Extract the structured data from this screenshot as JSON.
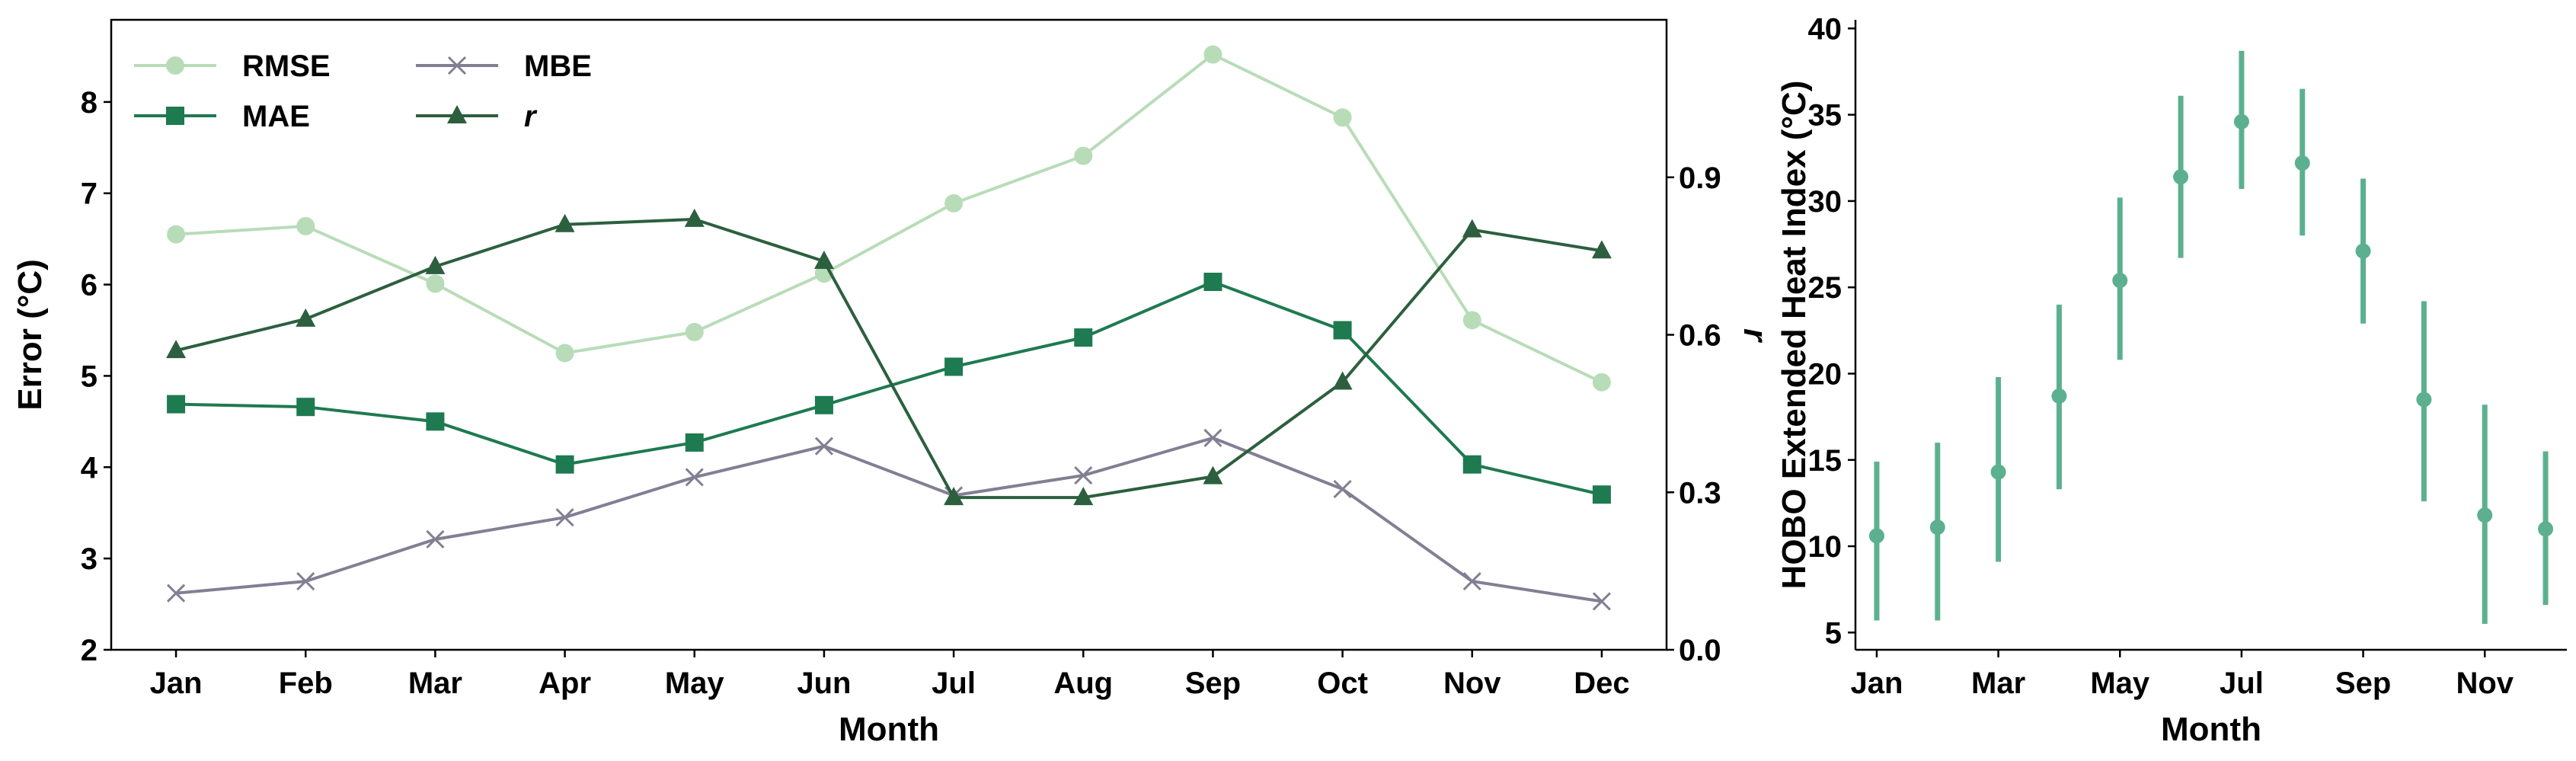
{
  "chart_data": [
    {
      "type": "line",
      "xlabel": "Month",
      "ylabel": "Error (°C)",
      "y2label": "r",
      "categories": [
        "Jan",
        "Feb",
        "Mar",
        "Apr",
        "May",
        "Jun",
        "Jul",
        "Aug",
        "Sep",
        "Oct",
        "Nov",
        "Dec"
      ],
      "ylim": [
        2,
        8.9
      ],
      "yticks": [
        2,
        3,
        4,
        5,
        6,
        7,
        8
      ],
      "y2lim": [
        0,
        1.2
      ],
      "y2ticks": [
        "0.0",
        "0.3",
        "0.6",
        "0.9"
      ],
      "grid": false,
      "legend": "upper-left",
      "series": [
        {
          "name": "RMSE",
          "axis": "left",
          "marker": "circle",
          "color": "#b8dcb8",
          "values": [
            6.55,
            6.64,
            6.01,
            5.25,
            5.48,
            6.12,
            6.89,
            7.41,
            8.52,
            7.83,
            5.61,
            4.93
          ]
        },
        {
          "name": "MAE",
          "axis": "left",
          "marker": "square",
          "color": "#1e7a50",
          "values": [
            4.69,
            4.66,
            4.5,
            4.03,
            4.27,
            4.68,
            5.1,
            5.42,
            6.03,
            5.5,
            4.03,
            3.7
          ]
        },
        {
          "name": "MBE",
          "axis": "left",
          "marker": "x",
          "color": "#827f93",
          "values": [
            2.62,
            2.75,
            3.21,
            3.45,
            3.89,
            4.23,
            3.69,
            3.91,
            4.32,
            3.76,
            2.75,
            2.53
          ]
        },
        {
          "name": "r",
          "axis": "right",
          "marker": "triangle",
          "color": "#2c5f3e",
          "values": [
            0.57,
            0.63,
            0.73,
            0.81,
            0.82,
            0.74,
            0.29,
            0.29,
            0.33,
            0.51,
            0.8,
            0.76
          ]
        }
      ]
    },
    {
      "type": "errorbar",
      "xlabel": "Month",
      "ylabel": "HOBO Extended Heat Index (°C)",
      "x": [
        1,
        2,
        3,
        4,
        5,
        6,
        7,
        8,
        9,
        10,
        11,
        12
      ],
      "xticks": [
        {
          "v": 1,
          "label": "Jan"
        },
        {
          "v": 3,
          "label": "Mar"
        },
        {
          "v": 5,
          "label": "May"
        },
        {
          "v": 7,
          "label": "Jul"
        },
        {
          "v": 9,
          "label": "Sep"
        },
        {
          "v": 11,
          "label": "Nov"
        }
      ],
      "ylim": [
        4,
        40.5
      ],
      "yticks": [
        5,
        10,
        15,
        20,
        25,
        30,
        35,
        40
      ],
      "grid": false,
      "color": "#5cb08f",
      "mean": [
        10.6,
        11.1,
        14.3,
        18.7,
        25.4,
        31.4,
        34.6,
        32.2,
        27.1,
        18.5,
        11.8,
        11.0
      ],
      "lower": [
        5.7,
        5.7,
        9.1,
        13.3,
        20.8,
        26.7,
        30.7,
        28.0,
        22.9,
        12.6,
        5.5,
        6.6
      ],
      "upper": [
        14.9,
        16.0,
        19.8,
        24.0,
        30.2,
        36.1,
        38.7,
        36.5,
        31.3,
        24.2,
        18.2,
        15.5
      ]
    }
  ]
}
